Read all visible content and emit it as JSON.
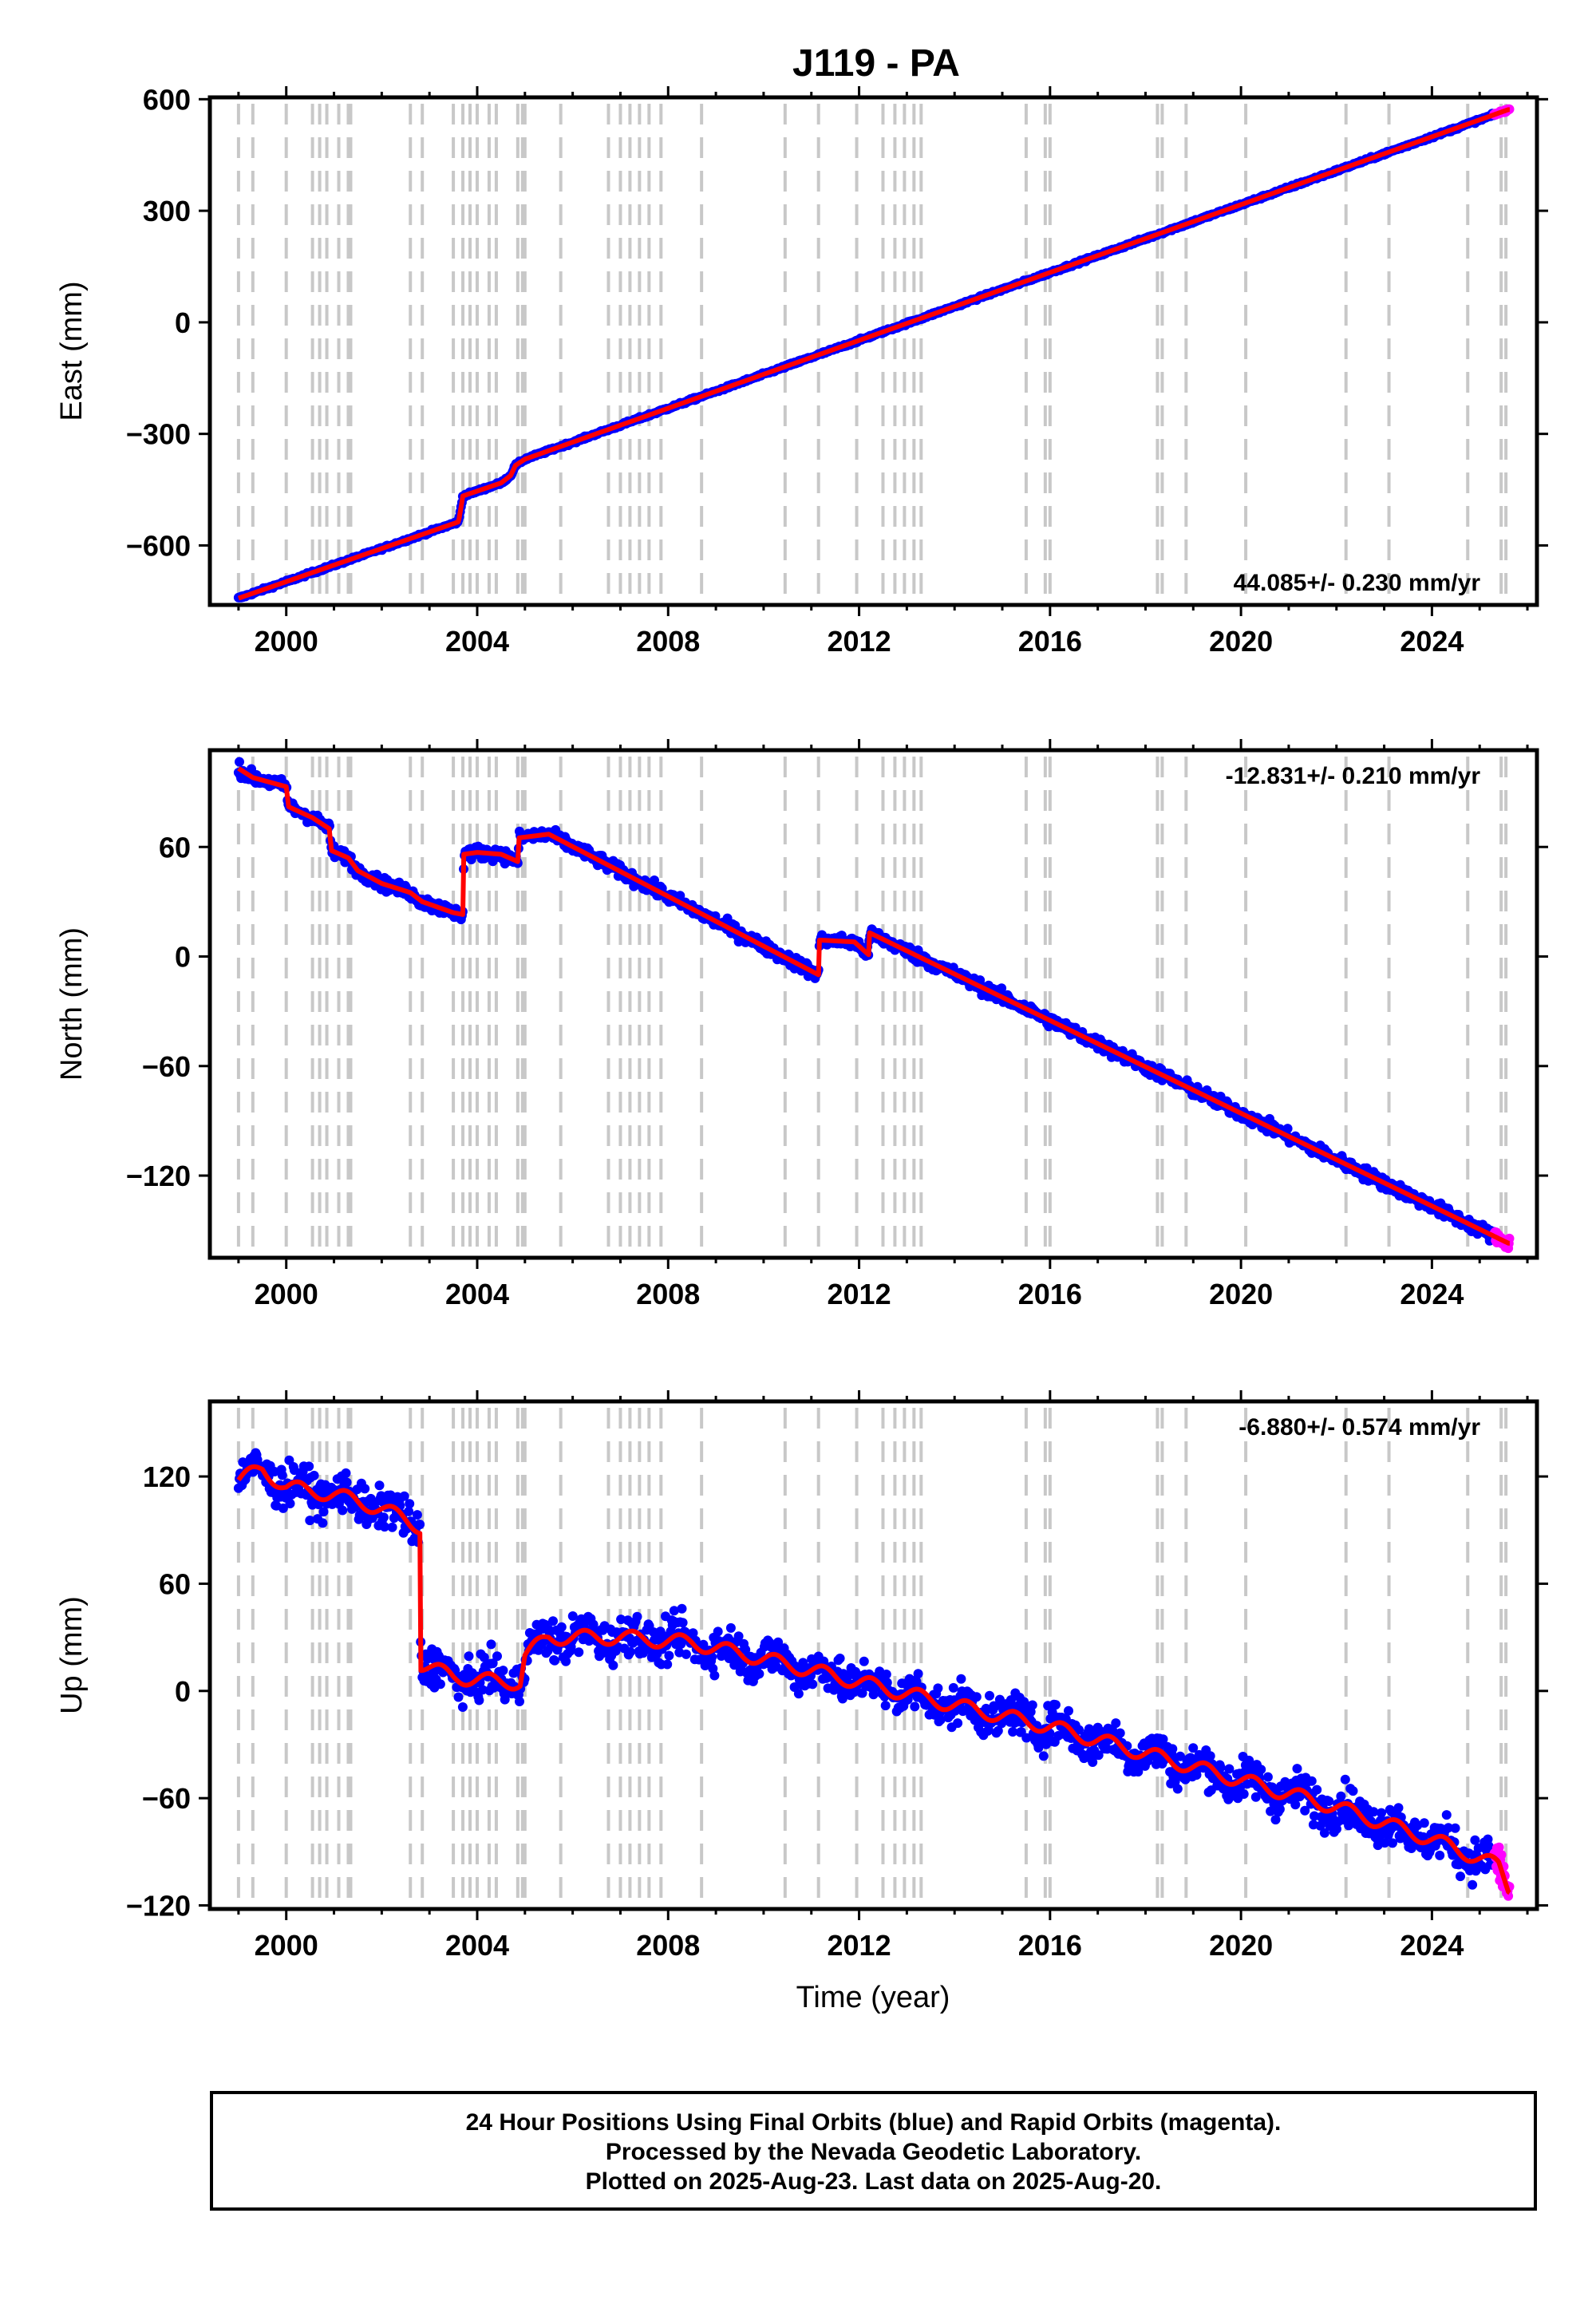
{
  "title": "J119 - PA",
  "xlabel": "Time (year)",
  "colors": {
    "final_orbits": "#0000ff",
    "rapid_orbits": "#ff00ff",
    "model_fit": "#ff0000",
    "event_lines": "#c8c8c8"
  },
  "footer": {
    "line1": "24 Hour Positions Using Final Orbits (blue) and Rapid Orbits (magenta).",
    "line2": "Processed by the Nevada Geodetic Laboratory.",
    "line3": "Plotted on 2025-Aug-23. Last data on 2025-Aug-20."
  },
  "chart_data": [
    {
      "type": "scatter",
      "component": "East",
      "ylabel": "East (mm)",
      "rate_label": "44.085+/- 0.230 mm/yr",
      "xlim": [
        1998.4,
        2026.2
      ],
      "ylim": [
        -760,
        605
      ],
      "xticks": [
        "2000",
        "2004",
        "2008",
        "2012",
        "2016",
        "2020",
        "2024"
      ],
      "yticks": [
        "600",
        "300",
        "0",
        "−300",
        "−600"
      ],
      "ytick_values": [
        600,
        300,
        0,
        -300,
        -600
      ],
      "event_lines": [
        1999.0,
        1999.3,
        2000.0,
        2000.55,
        2000.7,
        2000.85,
        2001.1,
        2001.3,
        2001.35,
        2002.6,
        2002.85,
        2003.5,
        2003.7,
        2003.85,
        2004.0,
        2004.25,
        2004.4,
        2004.85,
        2004.95,
        2005.0,
        2005.75,
        2006.75,
        2007.0,
        2007.2,
        2007.4,
        2007.6,
        2007.85,
        2008.7,
        2010.45,
        2011.15,
        2011.95,
        2012.5,
        2012.75,
        2012.95,
        2013.15,
        2013.3,
        2015.5,
        2015.9,
        2016.0,
        2018.25,
        2018.35,
        2018.85,
        2020.1,
        2022.2,
        2023.1,
        2024.75,
        2025.45,
        2025.55
      ],
      "fit_points": [
        [
          1999.0,
          -742
        ],
        [
          2003.6,
          -537
        ],
        [
          2003.62,
          -528
        ],
        [
          2003.7,
          -467
        ],
        [
          2004.5,
          -432
        ],
        [
          2004.7,
          -412
        ],
        [
          2004.8,
          -385
        ],
        [
          2005.0,
          -368
        ],
        [
          2025.6,
          572
        ]
      ],
      "final_orbits_end": 2025.3,
      "rapid_orbits_range": [
        2025.3,
        2025.63
      ],
      "noise_mm": 2.5
    },
    {
      "type": "scatter",
      "component": "North",
      "ylabel": "North (mm)",
      "rate_label": "-12.831+/- 0.210 mm/yr",
      "xlim": [
        1998.4,
        2026.2
      ],
      "ylim": [
        -165,
        113
      ],
      "xticks": [
        "2000",
        "2004",
        "2008",
        "2012",
        "2016",
        "2020",
        "2024"
      ],
      "yticks": [
        "60",
        "0",
        "−60",
        "−120"
      ],
      "ytick_values": [
        60,
        0,
        -60,
        -120
      ],
      "event_lines": [
        1999.0,
        1999.3,
        2000.0,
        2000.55,
        2000.7,
        2000.85,
        2001.1,
        2001.3,
        2001.35,
        2002.6,
        2002.85,
        2003.5,
        2003.7,
        2003.85,
        2004.0,
        2004.25,
        2004.4,
        2004.85,
        2004.95,
        2005.0,
        2005.75,
        2006.75,
        2007.0,
        2007.2,
        2007.4,
        2007.6,
        2007.85,
        2008.7,
        2010.45,
        2011.15,
        2011.95,
        2012.5,
        2012.75,
        2012.95,
        2013.15,
        2013.3,
        2015.5,
        2015.9,
        2016.0,
        2018.25,
        2018.35,
        2018.85,
        2020.1,
        2022.2,
        2023.1,
        2024.75,
        2025.45,
        2025.55
      ],
      "fit_points": [
        [
          1999.0,
          103
        ],
        [
          1999.3,
          98
        ],
        [
          2000.0,
          93
        ],
        [
          2000.05,
          82
        ],
        [
          2000.55,
          76
        ],
        [
          2000.9,
          70
        ],
        [
          2000.95,
          58
        ],
        [
          2001.3,
          54
        ],
        [
          2001.5,
          47
        ],
        [
          2002.0,
          40
        ],
        [
          2002.6,
          35
        ],
        [
          2002.85,
          30
        ],
        [
          2003.5,
          24
        ],
        [
          2003.7,
          23
        ],
        [
          2003.72,
          56
        ],
        [
          2004.0,
          57
        ],
        [
          2004.5,
          56
        ],
        [
          2004.85,
          52
        ],
        [
          2004.88,
          65
        ],
        [
          2005.5,
          67
        ],
        [
          2011.15,
          -10
        ],
        [
          2011.17,
          9
        ],
        [
          2011.9,
          8
        ],
        [
          2012.2,
          1
        ],
        [
          2012.22,
          13
        ],
        [
          2025.6,
          -157
        ]
      ],
      "final_orbits_end": 2025.3,
      "rapid_orbits_range": [
        2025.3,
        2025.63
      ],
      "noise_mm": 2.5
    },
    {
      "type": "scatter",
      "component": "Up",
      "ylabel": "Up (mm)",
      "rate_label": "-6.880+/- 0.574 mm/yr",
      "xlim": [
        1998.4,
        2026.2
      ],
      "ylim": [
        -122,
        162
      ],
      "xticks": [
        "2000",
        "2004",
        "2008",
        "2012",
        "2016",
        "2020",
        "2024"
      ],
      "yticks": [
        "120",
        "60",
        "0",
        "−60",
        "−120"
      ],
      "ytick_values": [
        120,
        60,
        0,
        -60,
        -120
      ],
      "event_lines": [
        1999.0,
        1999.3,
        2000.0,
        2000.55,
        2000.7,
        2000.85,
        2001.1,
        2001.3,
        2001.35,
        2002.6,
        2002.85,
        2003.5,
        2003.7,
        2003.85,
        2004.0,
        2004.25,
        2004.4,
        2004.85,
        2004.95,
        2005.0,
        2005.75,
        2006.75,
        2007.0,
        2007.2,
        2007.4,
        2007.6,
        2007.85,
        2008.7,
        2010.45,
        2011.15,
        2011.95,
        2012.5,
        2012.75,
        2012.95,
        2013.15,
        2013.3,
        2015.5,
        2015.9,
        2016.0,
        2018.25,
        2018.35,
        2018.85,
        2020.1,
        2022.2,
        2023.1,
        2024.75,
        2025.45,
        2025.55
      ],
      "fit_points": [
        [
          1999.0,
          118
        ],
        [
          1999.5,
          124
        ],
        [
          2000.0,
          114
        ],
        [
          2001.0,
          110
        ],
        [
          2002.0,
          102
        ],
        [
          2002.8,
          92
        ],
        [
          2002.82,
          15
        ],
        [
          2003.5,
          8
        ],
        [
          2004.5,
          5
        ],
        [
          2004.9,
          5
        ],
        [
          2005.0,
          20
        ],
        [
          2005.5,
          30
        ],
        [
          2007.0,
          30
        ],
        [
          2008.5,
          27
        ],
        [
          2010.0,
          18
        ],
        [
          2012.0,
          5
        ],
        [
          2014.0,
          -8
        ],
        [
          2016.0,
          -20
        ],
        [
          2018.0,
          -35
        ],
        [
          2020.0,
          -50
        ],
        [
          2022.0,
          -65
        ],
        [
          2024.0,
          -83
        ],
        [
          2025.4,
          -98
        ],
        [
          2025.6,
          -110
        ]
      ],
      "seasonal_mm": 4,
      "final_orbits_end": 2025.3,
      "rapid_orbits_range": [
        2025.3,
        2025.63
      ],
      "noise_mm": 8
    }
  ]
}
